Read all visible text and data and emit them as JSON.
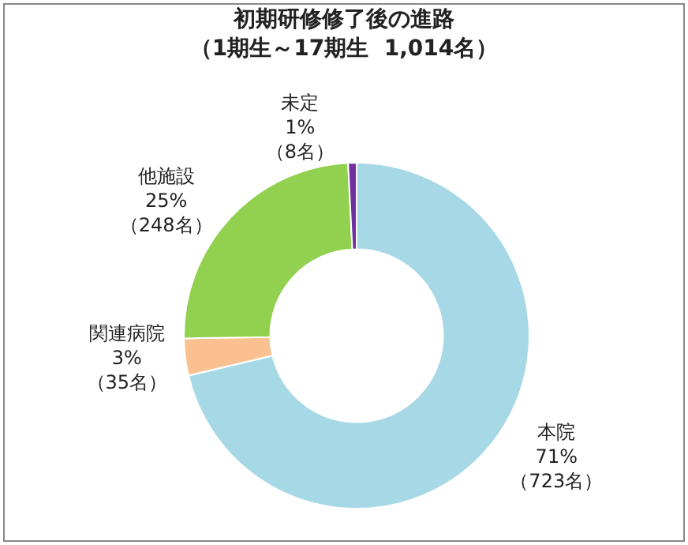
{
  "chart_data": {
    "type": "donut",
    "title": "初期研修修了後の進路",
    "subtitle": "（1期生～17期生  1,014名）",
    "categories": [
      "本院",
      "関連病院",
      "他施設",
      "未定"
    ],
    "values": [
      723,
      35,
      248,
      8
    ],
    "value_labels": [
      "71%\n（723名）",
      "3%\n（35名）",
      "25%\n（248名）",
      "1%\n（8名）"
    ],
    "colors": [
      "#a6d8e6",
      "#fac090",
      "#92d050",
      "#7030a0"
    ],
    "legend": false
  }
}
